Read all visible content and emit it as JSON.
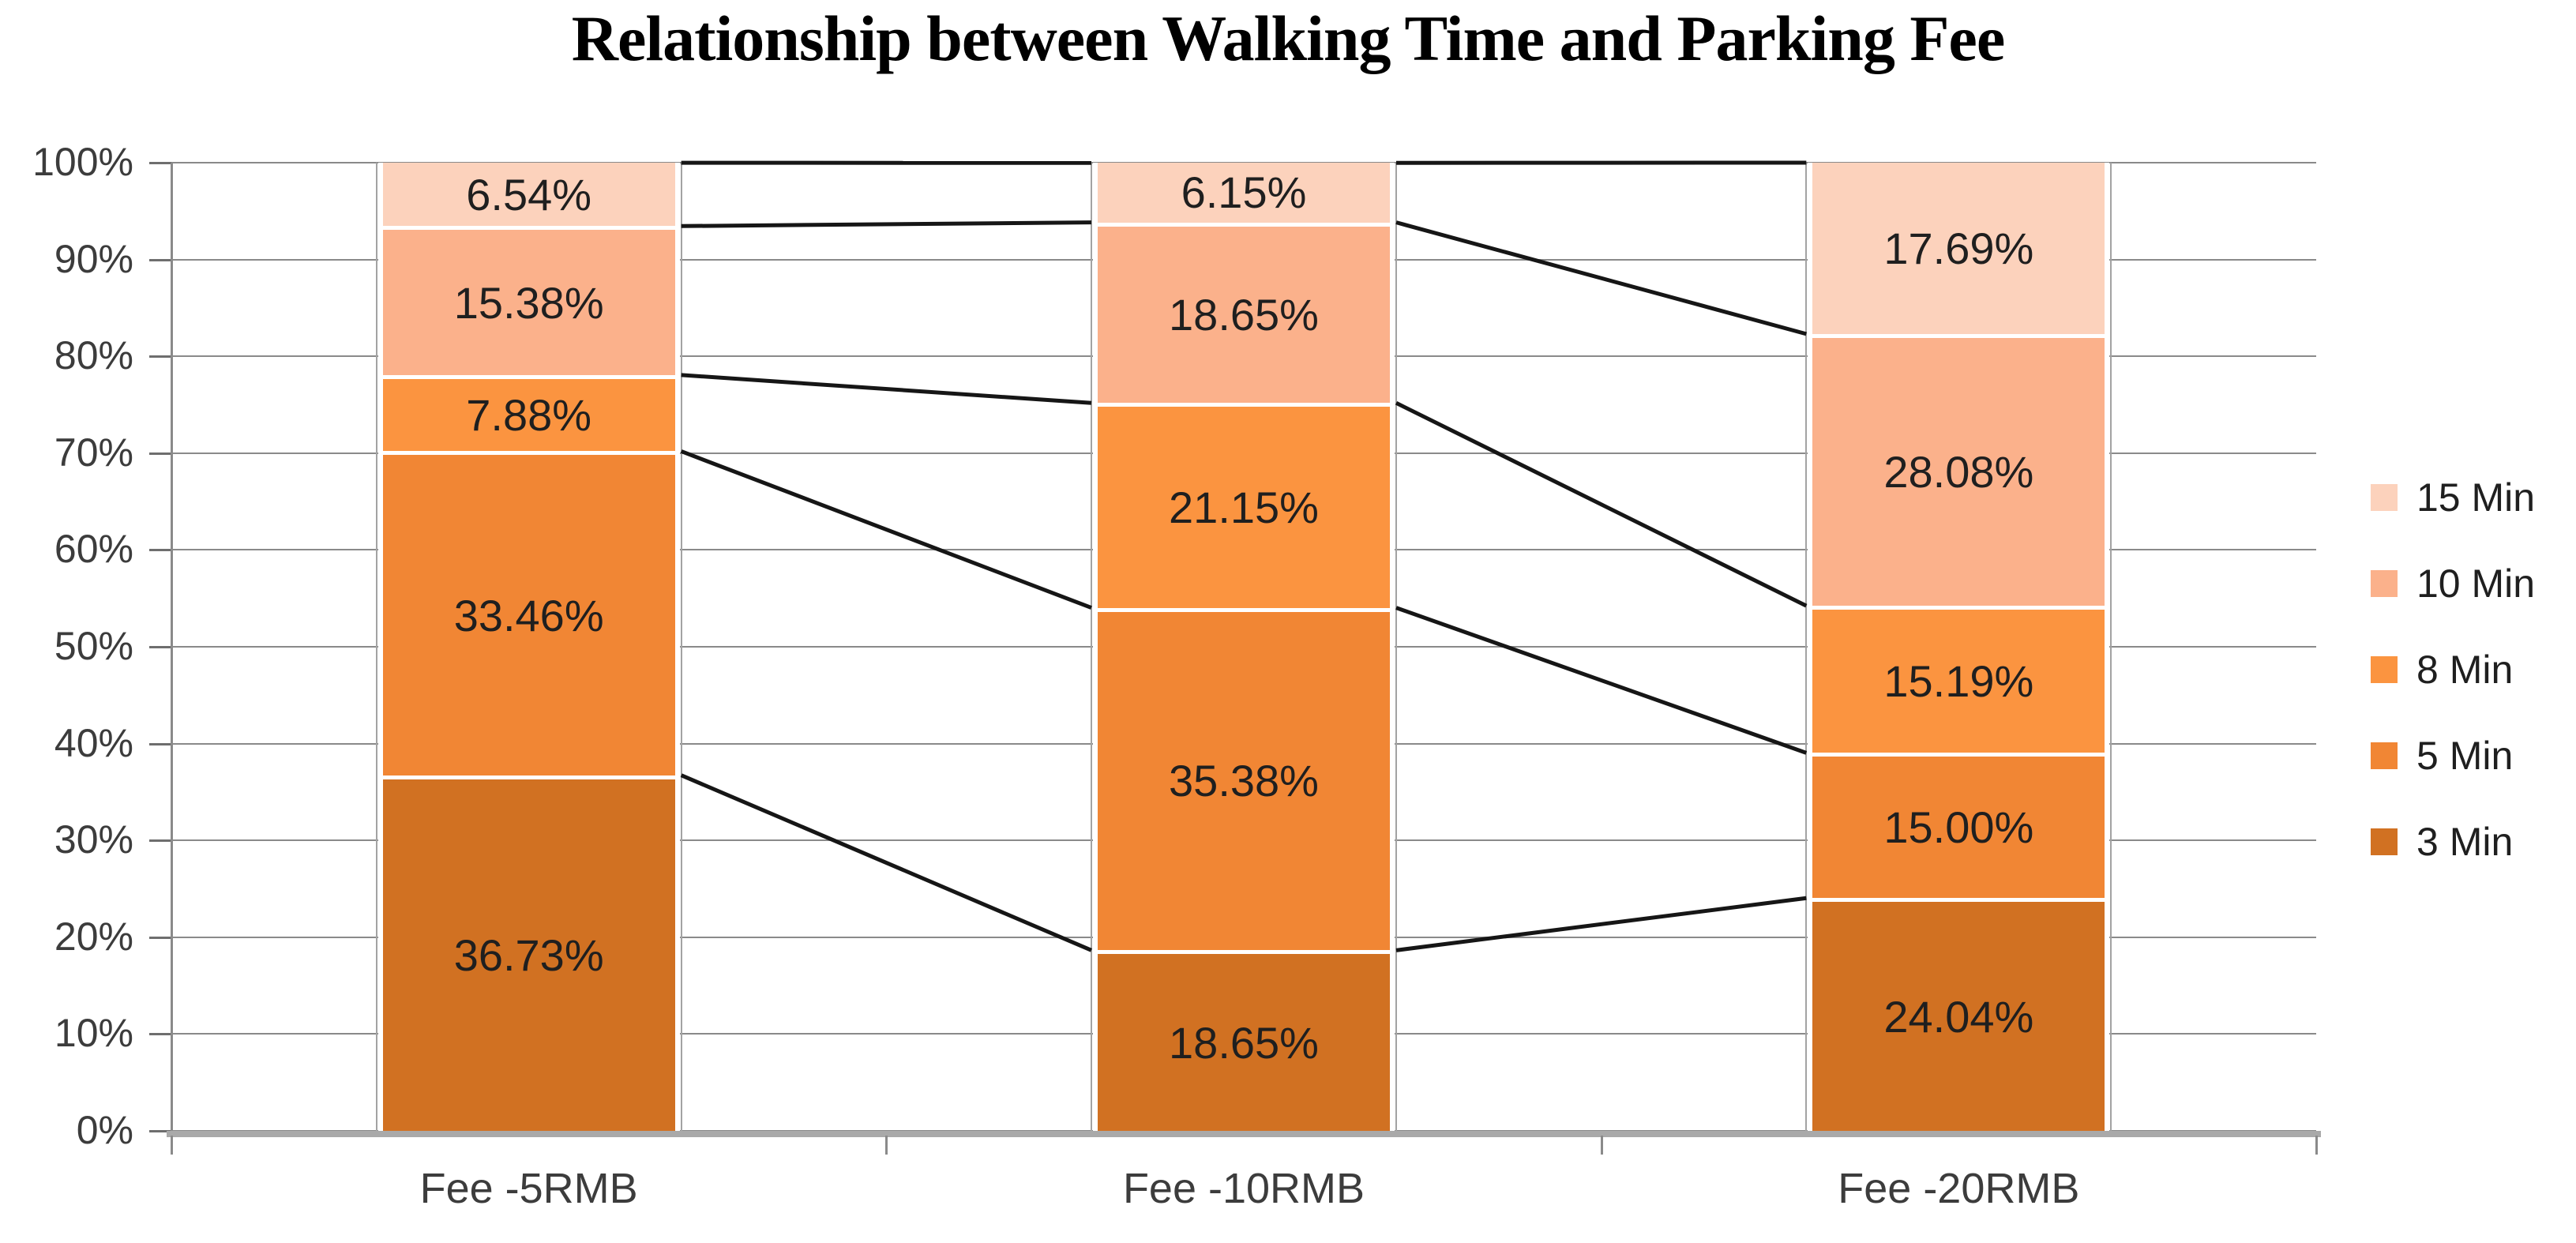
{
  "chart_data": {
    "type": "bar",
    "stacked": true,
    "title": "Relationship between Walking Time and Parking Fee",
    "categories": [
      "Fee -5RMB",
      "Fee -10RMB",
      "Fee -20RMB"
    ],
    "series": [
      {
        "name": "3 Min",
        "color": "#D17122",
        "values": [
          36.73,
          18.65,
          24.04
        ],
        "labels": [
          "36.73%",
          "18.65%",
          "24.04%"
        ]
      },
      {
        "name": "5 Min",
        "color": "#F18634",
        "values": [
          33.46,
          35.38,
          15.0
        ],
        "labels": [
          "33.46%",
          "35.38%",
          "15.00%"
        ]
      },
      {
        "name": "8 Min",
        "color": "#FB9440",
        "values": [
          7.88,
          21.15,
          15.19
        ],
        "labels": [
          "7.88%",
          "21.15%",
          "15.19%"
        ]
      },
      {
        "name": "10 Min",
        "color": "#FBB18B",
        "values": [
          15.38,
          18.65,
          28.08
        ],
        "labels": [
          "15.38%",
          "18.65%",
          "28.08%"
        ]
      },
      {
        "name": "15 Min",
        "color": "#FCD2BC",
        "values": [
          6.54,
          6.15,
          17.69
        ],
        "labels": [
          "6.54%",
          "6.15%",
          "17.69%"
        ]
      }
    ],
    "y_axis": {
      "ticks": [
        "0%",
        "10%",
        "20%",
        "30%",
        "40%",
        "50%",
        "60%",
        "70%",
        "80%",
        "90%",
        "100%"
      ],
      "min": 0,
      "max": 100,
      "grid": true
    },
    "legend": {
      "position": "right",
      "entries": [
        "15 Min",
        "10 Min",
        "8 Min",
        "5 Min",
        "3 Min"
      ]
    },
    "series_lines": {
      "show": true,
      "color": "#161616"
    }
  }
}
